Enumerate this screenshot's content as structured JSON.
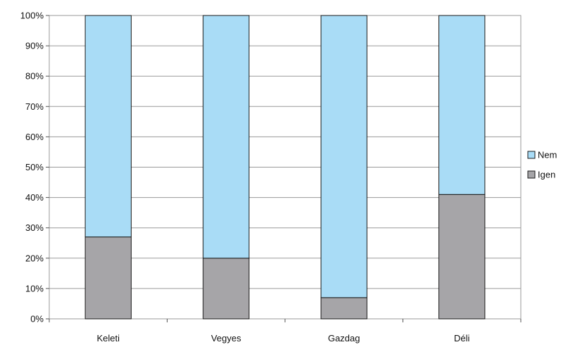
{
  "chart_data": {
    "type": "bar",
    "stacked": true,
    "percent": true,
    "categories": [
      "Keleti",
      "Vegyes",
      "Gazdag",
      "Déli"
    ],
    "series": [
      {
        "name": "Igen",
        "values": [
          27,
          20,
          7,
          41
        ],
        "color": "#a6a5a8"
      },
      {
        "name": "Nem",
        "values": [
          73,
          80,
          93,
          59
        ],
        "color": "#a9dcf6"
      }
    ],
    "y_ticks": [
      "0%",
      "10%",
      "20%",
      "30%",
      "40%",
      "50%",
      "60%",
      "70%",
      "80%",
      "90%",
      "100%"
    ],
    "ylim": [
      0,
      100
    ],
    "grid": true,
    "legend_position": "right",
    "legend_order": [
      "Nem",
      "Igen"
    ],
    "title": "",
    "xlabel": "",
    "ylabel": ""
  }
}
